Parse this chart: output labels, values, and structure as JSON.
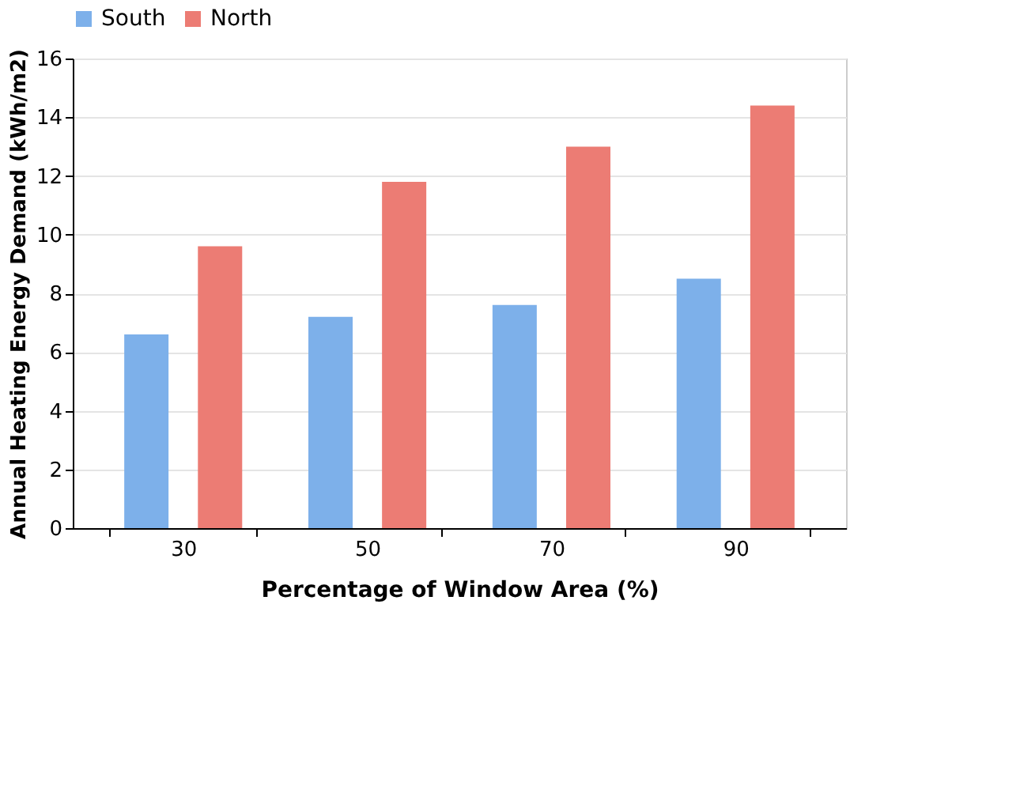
{
  "chart_data": {
    "type": "bar",
    "xlabel": "Percentage of Window Area (%)",
    "ylabel": "Annual Heating Energy Demand (kWh/m2)",
    "categories": [
      "30",
      "50",
      "70",
      "90"
    ],
    "series": [
      {
        "name": "South",
        "color": "#7db0ea",
        "values": [
          6.6,
          7.2,
          7.6,
          8.5
        ]
      },
      {
        "name": "North",
        "color": "#ec7c74",
        "values": [
          9.6,
          11.8,
          13.0,
          14.4
        ]
      }
    ],
    "ylim": [
      0,
      16
    ],
    "yticks": [
      0,
      2,
      4,
      6,
      8,
      10,
      12,
      14,
      16
    ],
    "grid": "y",
    "legend": "top"
  }
}
